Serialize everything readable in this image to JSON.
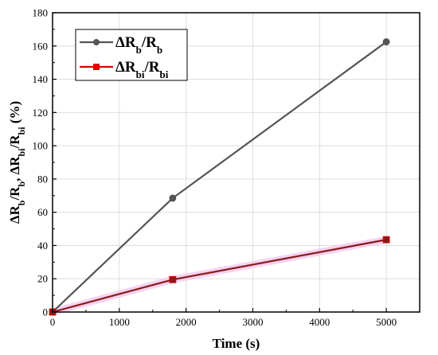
{
  "chart_data": {
    "type": "line",
    "xlabel": "Time (s)",
    "ylabel": {
      "parts": [
        {
          "text": "ΔR",
          "sub": false
        },
        {
          "text": "b",
          "sub": true
        },
        {
          "text": "/R",
          "sub": false
        },
        {
          "text": "b",
          "sub": true
        },
        {
          "text": ", ΔR",
          "sub": false
        },
        {
          "text": "bi",
          "sub": true
        },
        {
          "text": "/R",
          "sub": false
        },
        {
          "text": "bi",
          "sub": true
        },
        {
          "text": " (%)",
          "sub": false
        }
      ]
    },
    "xlim": [
      0,
      5500
    ],
    "ylim": [
      0,
      180
    ],
    "xticks": [
      0,
      1000,
      2000,
      3000,
      4000,
      5000
    ],
    "yticks": [
      0,
      20,
      40,
      60,
      80,
      100,
      120,
      140,
      160,
      180
    ],
    "grid": true,
    "legend_position": "top-left",
    "series": [
      {
        "name_parts": [
          {
            "text": "ΔR",
            "sub": false
          },
          {
            "text": "b",
            "sub": true
          },
          {
            "text": "/R",
            "sub": false
          },
          {
            "text": "b",
            "sub": true
          }
        ],
        "x": [
          0,
          1800,
          5000
        ],
        "y": [
          0,
          68.5,
          162.5
        ],
        "color": "#555555",
        "marker": "circle"
      },
      {
        "name_parts": [
          {
            "text": "ΔR",
            "sub": false
          },
          {
            "text": "bi",
            "sub": true
          },
          {
            "text": "/R",
            "sub": false
          },
          {
            "text": "bi",
            "sub": true
          }
        ],
        "x": [
          0,
          1800,
          5000
        ],
        "y": [
          0,
          19.5,
          43.5
        ],
        "color": "#8B1A1A",
        "marker_color": "#E00000",
        "marker": "square"
      }
    ]
  }
}
